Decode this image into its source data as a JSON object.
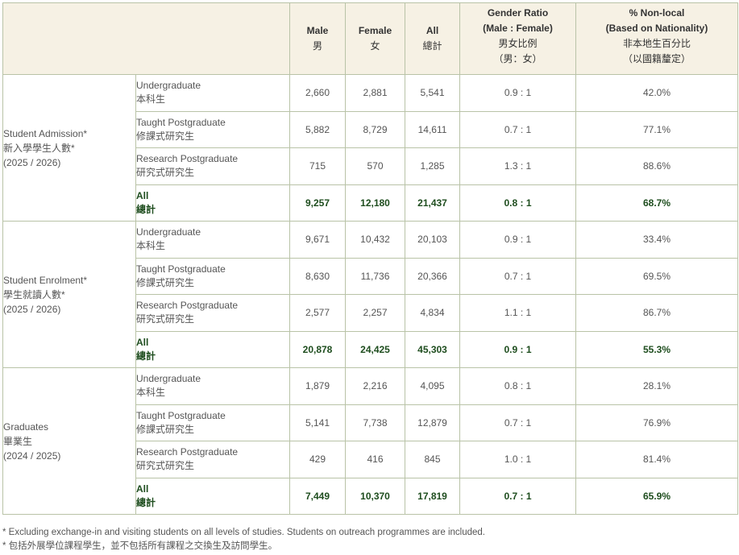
{
  "header": {
    "male": {
      "en": "Male",
      "zh": "男"
    },
    "female": {
      "en": "Female",
      "zh": "女"
    },
    "all": {
      "en": "All",
      "zh": "總計"
    },
    "gender_ratio": {
      "en1": "Gender Ratio",
      "en2": "(Male : Female)",
      "zh1": "男女比例",
      "zh2": "（男：女）"
    },
    "non_local": {
      "en1": "% Non-local",
      "en2": "(Based on Nationality)",
      "zh1": "非本地生百分比",
      "zh2": "（以國籍釐定）"
    }
  },
  "groups": [
    {
      "label_en": "Student Admission*",
      "label_zh": "新入學學生人數*",
      "period": "(2025 / 2026)",
      "rows": [
        {
          "en": "Undergraduate",
          "zh": "本科生",
          "male": "2,660",
          "female": "2,881",
          "all": "5,541",
          "ratio": "0.9 : 1",
          "nonlocal": "42.0%"
        },
        {
          "en": "Taught Postgraduate",
          "zh": "修課式研究生",
          "male": "5,882",
          "female": "8,729",
          "all": "14,611",
          "ratio": "0.7 : 1",
          "nonlocal": "77.1%"
        },
        {
          "en": "Research Postgraduate",
          "zh": "研究式研究生",
          "male": "715",
          "female": "570",
          "all": "1,285",
          "ratio": "1.3 : 1",
          "nonlocal": "88.6%"
        },
        {
          "en": "All",
          "zh": "總計",
          "male": "9,257",
          "female": "12,180",
          "all": "21,437",
          "ratio": "0.8 : 1",
          "nonlocal": "68.7%"
        }
      ]
    },
    {
      "label_en": "Student Enrolment*",
      "label_zh": "學生就讀人數*",
      "period": "(2025 / 2026)",
      "rows": [
        {
          "en": "Undergraduate",
          "zh": "本科生",
          "male": "9,671",
          "female": "10,432",
          "all": "20,103",
          "ratio": "0.9 : 1",
          "nonlocal": "33.4%"
        },
        {
          "en": "Taught Postgraduate",
          "zh": "修課式研究生",
          "male": "8,630",
          "female": "11,736",
          "all": "20,366",
          "ratio": "0.7 : 1",
          "nonlocal": "69.5%"
        },
        {
          "en": "Research Postgraduate",
          "zh": "研究式研究生",
          "male": "2,577",
          "female": "2,257",
          "all": "4,834",
          "ratio": "1.1 : 1",
          "nonlocal": "86.7%"
        },
        {
          "en": "All",
          "zh": "總計",
          "male": "20,878",
          "female": "24,425",
          "all": "45,303",
          "ratio": "0.9 : 1",
          "nonlocal": "55.3%"
        }
      ]
    },
    {
      "label_en": "Graduates",
      "label_zh": "畢業生",
      "period": "(2024 / 2025)",
      "rows": [
        {
          "en": "Undergraduate",
          "zh": "本科生",
          "male": "1,879",
          "female": "2,216",
          "all": "4,095",
          "ratio": "0.8 : 1",
          "nonlocal": "28.1%"
        },
        {
          "en": "Taught Postgraduate",
          "zh": "修課式研究生",
          "male": "5,141",
          "female": "7,738",
          "all": "12,879",
          "ratio": "0.7 : 1",
          "nonlocal": "76.9%"
        },
        {
          "en": "Research Postgraduate",
          "zh": "研究式研究生",
          "male": "429",
          "female": "416",
          "all": "845",
          "ratio": "1.0 : 1",
          "nonlocal": "81.4%"
        },
        {
          "en": "All",
          "zh": "總計",
          "male": "7,449",
          "female": "10,370",
          "all": "17,819",
          "ratio": "0.7 : 1",
          "nonlocal": "65.9%"
        }
      ]
    }
  ],
  "footnotes": {
    "en": "* Excluding exchange-in and visiting students on all levels of studies. Students on outreach programmes are included.",
    "zh": "* 包括外展學位課程學生，並不包括所有課程之交換生及訪問學生。"
  }
}
